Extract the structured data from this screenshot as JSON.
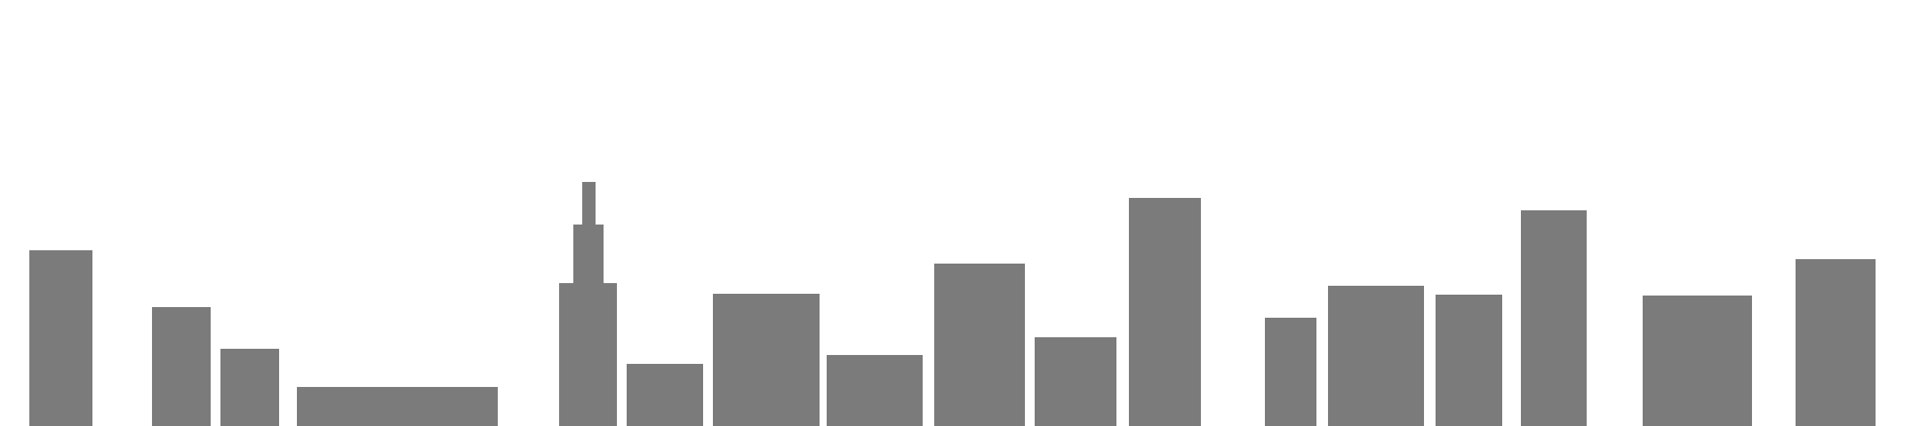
{
  "colors": {
    "background": "#ffffff",
    "building": "#7a7b7a"
  },
  "buildings": [
    {
      "name": "building-1"
    },
    {
      "name": "building-2"
    },
    {
      "name": "building-3"
    },
    {
      "name": "building-4"
    },
    {
      "name": "building-5-tower"
    },
    {
      "name": "building-6"
    },
    {
      "name": "building-7"
    },
    {
      "name": "building-8"
    },
    {
      "name": "building-9"
    },
    {
      "name": "building-10"
    },
    {
      "name": "building-11"
    },
    {
      "name": "building-12"
    },
    {
      "name": "building-13"
    },
    {
      "name": "building-14"
    },
    {
      "name": "building-15"
    },
    {
      "name": "building-16"
    },
    {
      "name": "building-17"
    }
  ]
}
